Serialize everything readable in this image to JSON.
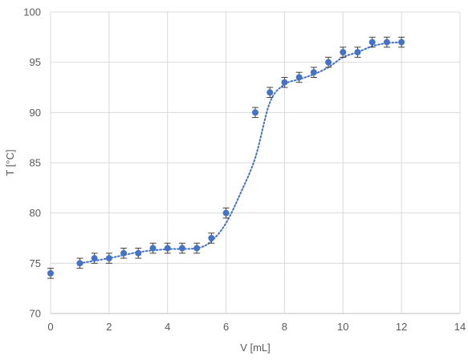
{
  "chart_data": {
    "type": "scatter",
    "xlabel": "V [mL]",
    "ylabel": "T [°C]",
    "xlim": [
      0,
      14
    ],
    "ylim": [
      70,
      100
    ],
    "xticks": [
      "0",
      "2",
      "4",
      "6",
      "8",
      "10",
      "12",
      "14"
    ],
    "yticks": [
      "70",
      "75",
      "80",
      "85",
      "90",
      "95",
      "100"
    ],
    "grid": true,
    "legend": "none",
    "marker_color": "#4472c4",
    "trendline_color": "#4472c4",
    "errorbar_color": "#404040",
    "error_y": 0.5,
    "points": [
      {
        "x": 0,
        "y": 74
      },
      {
        "x": 1,
        "y": 75
      },
      {
        "x": 1.5,
        "y": 75.5
      },
      {
        "x": 2,
        "y": 75.5
      },
      {
        "x": 2.5,
        "y": 76
      },
      {
        "x": 3,
        "y": 76
      },
      {
        "x": 3.5,
        "y": 76.5
      },
      {
        "x": 4,
        "y": 76.5
      },
      {
        "x": 4.5,
        "y": 76.5
      },
      {
        "x": 5,
        "y": 76.5
      },
      {
        "x": 5.5,
        "y": 77.5
      },
      {
        "x": 6,
        "y": 80
      },
      {
        "x": 7,
        "y": 90
      },
      {
        "x": 7.5,
        "y": 92
      },
      {
        "x": 8,
        "y": 93
      },
      {
        "x": 8.5,
        "y": 93.5
      },
      {
        "x": 9,
        "y": 94
      },
      {
        "x": 9.5,
        "y": 95
      },
      {
        "x": 10,
        "y": 96
      },
      {
        "x": 10.5,
        "y": 96
      },
      {
        "x": 11,
        "y": 97
      },
      {
        "x": 11.5,
        "y": 97
      },
      {
        "x": 12,
        "y": 97
      }
    ],
    "trendline": [
      {
        "x": 1,
        "y": 75.0
      },
      {
        "x": 2,
        "y": 75.5
      },
      {
        "x": 3,
        "y": 76.1
      },
      {
        "x": 4,
        "y": 76.4
      },
      {
        "x": 5,
        "y": 76.5
      },
      {
        "x": 5.5,
        "y": 77.2
      },
      {
        "x": 6,
        "y": 79.0
      },
      {
        "x": 6.5,
        "y": 82.0
      },
      {
        "x": 7,
        "y": 85.5
      },
      {
        "x": 7.5,
        "y": 91.0
      },
      {
        "x": 8,
        "y": 92.8
      },
      {
        "x": 8.5,
        "y": 93.3
      },
      {
        "x": 9,
        "y": 93.8
      },
      {
        "x": 9.5,
        "y": 94.5
      },
      {
        "x": 10,
        "y": 95.5
      },
      {
        "x": 10.5,
        "y": 96.0
      },
      {
        "x": 11,
        "y": 96.6
      },
      {
        "x": 11.5,
        "y": 96.9
      },
      {
        "x": 12,
        "y": 97.0
      }
    ]
  }
}
